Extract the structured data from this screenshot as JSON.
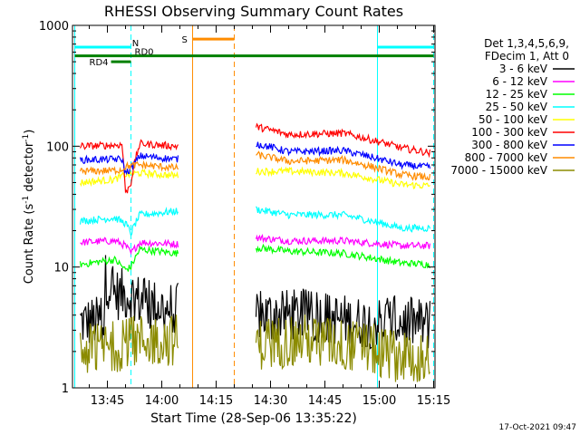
{
  "chart_data": {
    "type": "line",
    "title": "RHESSI Observing Summary Count Rates",
    "xlabel": "Start Time (28-Sep-06 13:35:22)",
    "ylabel_main": "Count Rate (s",
    "ylabel_sup1": "-1",
    "ylabel_mid": " detector",
    "ylabel_sup2": "-1",
    "ylabel_end": ")",
    "timestamp": "17-Oct-2021 09:47",
    "x_start_min": 35.37,
    "x_end_min": 135.37,
    "x_ticks": [
      {
        "min": 45,
        "label": "13:45"
      },
      {
        "min": 60,
        "label": "14:00"
      },
      {
        "min": 75,
        "label": "14:15"
      },
      {
        "min": 90,
        "label": "14:30"
      },
      {
        "min": 105,
        "label": "14:45"
      },
      {
        "min": 120,
        "label": "15:00"
      },
      {
        "min": 135,
        "label": "15:15"
      }
    ],
    "ylim": [
      1,
      1000
    ],
    "y_scale": "log",
    "y_ticks": [
      {
        "value": 1,
        "label": "1"
      },
      {
        "value": 10,
        "label": "10"
      },
      {
        "value": 100,
        "label": "100"
      },
      {
        "value": 1000,
        "label": "1000"
      }
    ],
    "legend_header": [
      "Det 1,3,4,5,6,9,",
      "FDecim 1, Att 0"
    ],
    "series": [
      {
        "name": "3 - 6 keV",
        "color": "#000000",
        "segments": [
          [
            37.5,
            3.5
          ],
          [
            44,
            3.5
          ],
          [
            44.5,
            8
          ],
          [
            47,
            6
          ],
          [
            52,
            5.8
          ],
          [
            55,
            5
          ],
          [
            64,
            4.5
          ],
          [
            86,
            4
          ],
          [
            100,
            4
          ],
          [
            114,
            3.5
          ],
          [
            126,
            3.5
          ],
          [
            131,
            3.4
          ],
          [
            134,
            3.3
          ]
        ]
      },
      {
        "name": "6 - 12 keV",
        "color": "#ff00ff",
        "segments": [
          [
            37.5,
            16
          ],
          [
            47,
            16.5
          ],
          [
            50,
            15
          ],
          [
            51.5,
            13
          ],
          [
            54,
            16
          ],
          [
            64,
            15.5
          ],
          [
            86,
            17.5
          ],
          [
            95,
            16.5
          ],
          [
            110,
            16.5
          ],
          [
            126,
            15
          ],
          [
            134,
            15
          ]
        ]
      },
      {
        "name": "12 - 25 keV",
        "color": "#00ff00",
        "segments": [
          [
            37.5,
            10.5
          ],
          [
            47,
            11.5
          ],
          [
            50,
            9.5
          ],
          [
            51.5,
            10
          ],
          [
            54,
            14
          ],
          [
            64,
            13
          ],
          [
            86,
            14.5
          ],
          [
            95,
            13.5
          ],
          [
            110,
            13
          ],
          [
            126,
            10.8
          ],
          [
            134,
            10.5
          ]
        ]
      },
      {
        "name": "25 - 50 keV",
        "color": "#00ffff",
        "segments": [
          [
            37.5,
            24
          ],
          [
            47,
            25.5
          ],
          [
            50,
            23
          ],
          [
            51.5,
            19
          ],
          [
            54,
            27
          ],
          [
            64,
            29
          ],
          [
            86,
            30
          ],
          [
            95,
            27
          ],
          [
            110,
            27
          ],
          [
            126,
            21
          ],
          [
            134,
            21
          ]
        ]
      },
      {
        "name": "50 - 100 keV",
        "color": "#ffff00",
        "segments": [
          [
            37.5,
            50
          ],
          [
            47,
            53
          ],
          [
            50,
            58
          ],
          [
            54,
            60
          ],
          [
            64,
            57
          ],
          [
            86,
            62
          ],
          [
            95,
            62
          ],
          [
            110,
            60
          ],
          [
            126,
            48
          ],
          [
            134,
            47
          ]
        ]
      },
      {
        "name": "100 - 300 keV",
        "color": "#ff0000",
        "segments": [
          [
            37.5,
            100
          ],
          [
            47,
            102
          ],
          [
            49,
            103
          ],
          [
            50,
            40
          ],
          [
            51.5,
            50
          ],
          [
            54,
            105
          ],
          [
            64,
            100
          ],
          [
            86,
            145
          ],
          [
            95,
            125
          ],
          [
            110,
            128
          ],
          [
            126,
            97
          ],
          [
            134,
            88
          ]
        ]
      },
      {
        "name": "300 - 800 keV",
        "color": "#0000ff",
        "segments": [
          [
            37.5,
            77
          ],
          [
            47,
            78
          ],
          [
            49,
            78
          ],
          [
            50,
            60
          ],
          [
            51.5,
            65
          ],
          [
            54,
            83
          ],
          [
            64,
            78
          ],
          [
            86,
            105
          ],
          [
            95,
            90
          ],
          [
            110,
            92
          ],
          [
            126,
            70
          ],
          [
            134,
            67
          ]
        ]
      },
      {
        "name": "800 - 7000 keV",
        "color": "#ff8c00",
        "segments": [
          [
            37.5,
            62
          ],
          [
            47,
            63
          ],
          [
            49,
            64
          ],
          [
            50,
            68
          ],
          [
            54,
            70
          ],
          [
            64,
            66
          ],
          [
            86,
            85
          ],
          [
            95,
            75
          ],
          [
            110,
            77
          ],
          [
            126,
            58
          ],
          [
            134,
            55
          ]
        ]
      },
      {
        "name": "7000 - 15000 keV",
        "color": "#8b8b00",
        "segments": [
          [
            37.5,
            2
          ],
          [
            47,
            2.2
          ],
          [
            54,
            2.5
          ],
          [
            64,
            2.5
          ],
          [
            86,
            2.3
          ],
          [
            100,
            2.5
          ],
          [
            114,
            2.2
          ],
          [
            126,
            1.8
          ],
          [
            134,
            1.8
          ]
        ]
      }
    ],
    "flags": [
      {
        "name": "N",
        "color": "#00ffff",
        "label": "N",
        "x1": 36,
        "x2": 51.5,
        "label_at": 51.8,
        "level": 660
      },
      {
        "name": "N2",
        "color": "#00ffff",
        "label": "",
        "x1": 119.5,
        "x2": 135,
        "label_at": 0,
        "level": 660
      },
      {
        "name": "S",
        "color": "#ff8c00",
        "label": "S",
        "x1": 68.5,
        "x2": 80,
        "label_at": 65.5,
        "level": 770
      },
      {
        "name": "RD0",
        "color": "#008000",
        "label": "RD0",
        "x1": 36,
        "x2": 135,
        "label_at": 52.5,
        "level": 560
      },
      {
        "name": "RD4",
        "color": "#008000",
        "label": "RD4",
        "x1": 46,
        "x2": 51.5,
        "label_at": 40,
        "level": 500
      }
    ],
    "night_spans": [
      {
        "kind": "cyan",
        "start": 36,
        "end": 51.5
      },
      {
        "kind": "cyan",
        "start": 119.5,
        "end": 135
      },
      {
        "kind": "orange",
        "start": 68.5,
        "end": 80
      }
    ],
    "data_gaps": [
      [
        64.5,
        86
      ]
    ]
  }
}
